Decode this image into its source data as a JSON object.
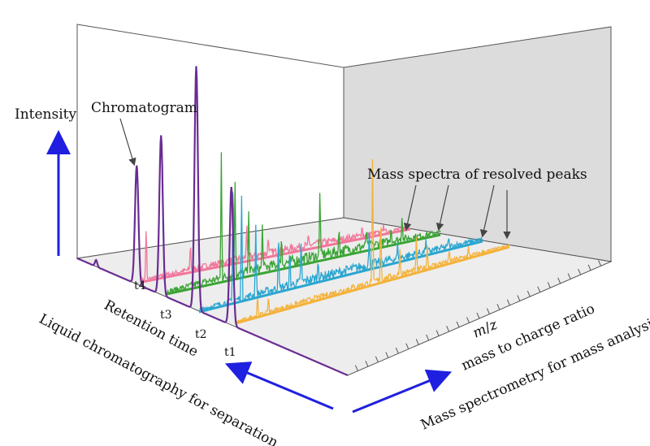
{
  "labels": {
    "intensity": "Intensity",
    "chromatogram": "Chromatogram",
    "mass_spectra": "Mass spectra of resolved peaks",
    "retention_time": "Retention time",
    "lc_separation": "Liquid chromatography for separation",
    "mz_m": "m",
    "mz_sep": "/",
    "mz_z": "z",
    "mass_to_charge": "mass to charge ratio",
    "ms_analysis": "Mass spectrometry for mass analysis"
  },
  "ticks": [
    "t4",
    "t3",
    "t2",
    "t1"
  ],
  "colors": {
    "chromatogram": "#6a2c91",
    "spectrum_t4": "#f2779a",
    "spectrum_t3": "#3aa434",
    "spectrum_t2": "#2aa6d1",
    "spectrum_t1": "#f4b23a",
    "axis_arrows": "#1f1fe0",
    "back_wall": "#dcdcdc",
    "floor": "#ededed"
  }
}
